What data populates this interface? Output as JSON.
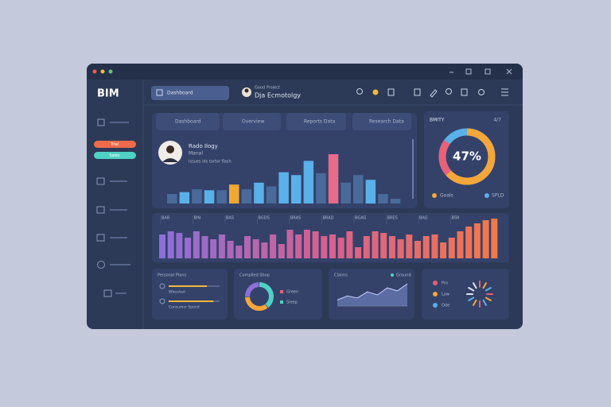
{
  "brand": "BIM",
  "sidebar_pills": [
    "Trial",
    "Sales"
  ],
  "topbar": {
    "search": "Dashboard",
    "user_title": "Good Project",
    "user_name": "Dja Ecmotolgy"
  },
  "tabs": [
    "Dashboard",
    "Overview",
    "Reports Data",
    "Research Data"
  ],
  "profile": {
    "name": "Rado Ilogy",
    "role": "Manal",
    "note": "Issues ids tartor flash"
  },
  "top_chart": {
    "values": [
      10,
      12,
      15,
      14,
      14,
      20,
      15,
      22,
      18,
      33,
      30,
      45,
      32,
      52,
      22,
      30,
      25,
      10,
      5
    ],
    "colors": [
      "#4a6a9a",
      "#5ab0e8",
      "#4a6a9a",
      "#5ab0e8",
      "#4a6a9a",
      "#f0a830",
      "#4a6a9a",
      "#5ab0e8",
      "#4a6a9a",
      "#5ab0e8",
      "#5ab0e8",
      "#5ab0e8",
      "#4a6a9a",
      "#e86b8a",
      "#4a6a9a",
      "#4a6a9a",
      "#5ab0e8",
      "#4a6a9a",
      "#4a6a9a"
    ]
  },
  "gauge": {
    "title": "BMITY",
    "corner": "4/7",
    "value": 47,
    "label": "47%",
    "legend": [
      "Goals",
      "SPLD"
    ],
    "colors": [
      "#f5a63a",
      "#e8607a",
      "#5ab0e8"
    ]
  },
  "bar_strip": {
    "labels": [
      "BAR",
      "BIN",
      "BAS",
      "BGDS",
      "BRAS",
      "BRAD",
      "BGAG",
      "BRES",
      "BAG",
      "BSR"
    ],
    "values": [
      30,
      34,
      32,
      26,
      34,
      28,
      24,
      30,
      22,
      16,
      28,
      24,
      20,
      30,
      18,
      36,
      30,
      36,
      34,
      28,
      30,
      26,
      34,
      14,
      28,
      34,
      32,
      28,
      24,
      30,
      22,
      28,
      30,
      20,
      26,
      34,
      40,
      44,
      48,
      50
    ],
    "colors": [
      "#8c6fd8",
      "#d8608e",
      "#f2784a"
    ]
  },
  "plans": {
    "title": "Personal Plans",
    "items": [
      "Wheelset",
      "Consumer Spend"
    ],
    "values": [
      75,
      88
    ],
    "color": "#f5b83a"
  },
  "shop": {
    "title": "Complied Shop",
    "legend": [
      "Green",
      "Sleep"
    ],
    "values": [
      40,
      35,
      25
    ],
    "colors": [
      "#4fd1c5",
      "#f5a63a",
      "#8c6fd8"
    ]
  },
  "claims": {
    "title": "Claims",
    "legend": "Graund",
    "values": [
      6,
      10,
      8,
      14,
      11,
      18,
      15,
      22
    ],
    "color": "#7b8fd0"
  },
  "status": {
    "legend": [
      "Pro",
      "Low",
      "Ode"
    ],
    "colors": [
      "#e8607a",
      "#f5a63a",
      "#5ab0e8"
    ]
  }
}
